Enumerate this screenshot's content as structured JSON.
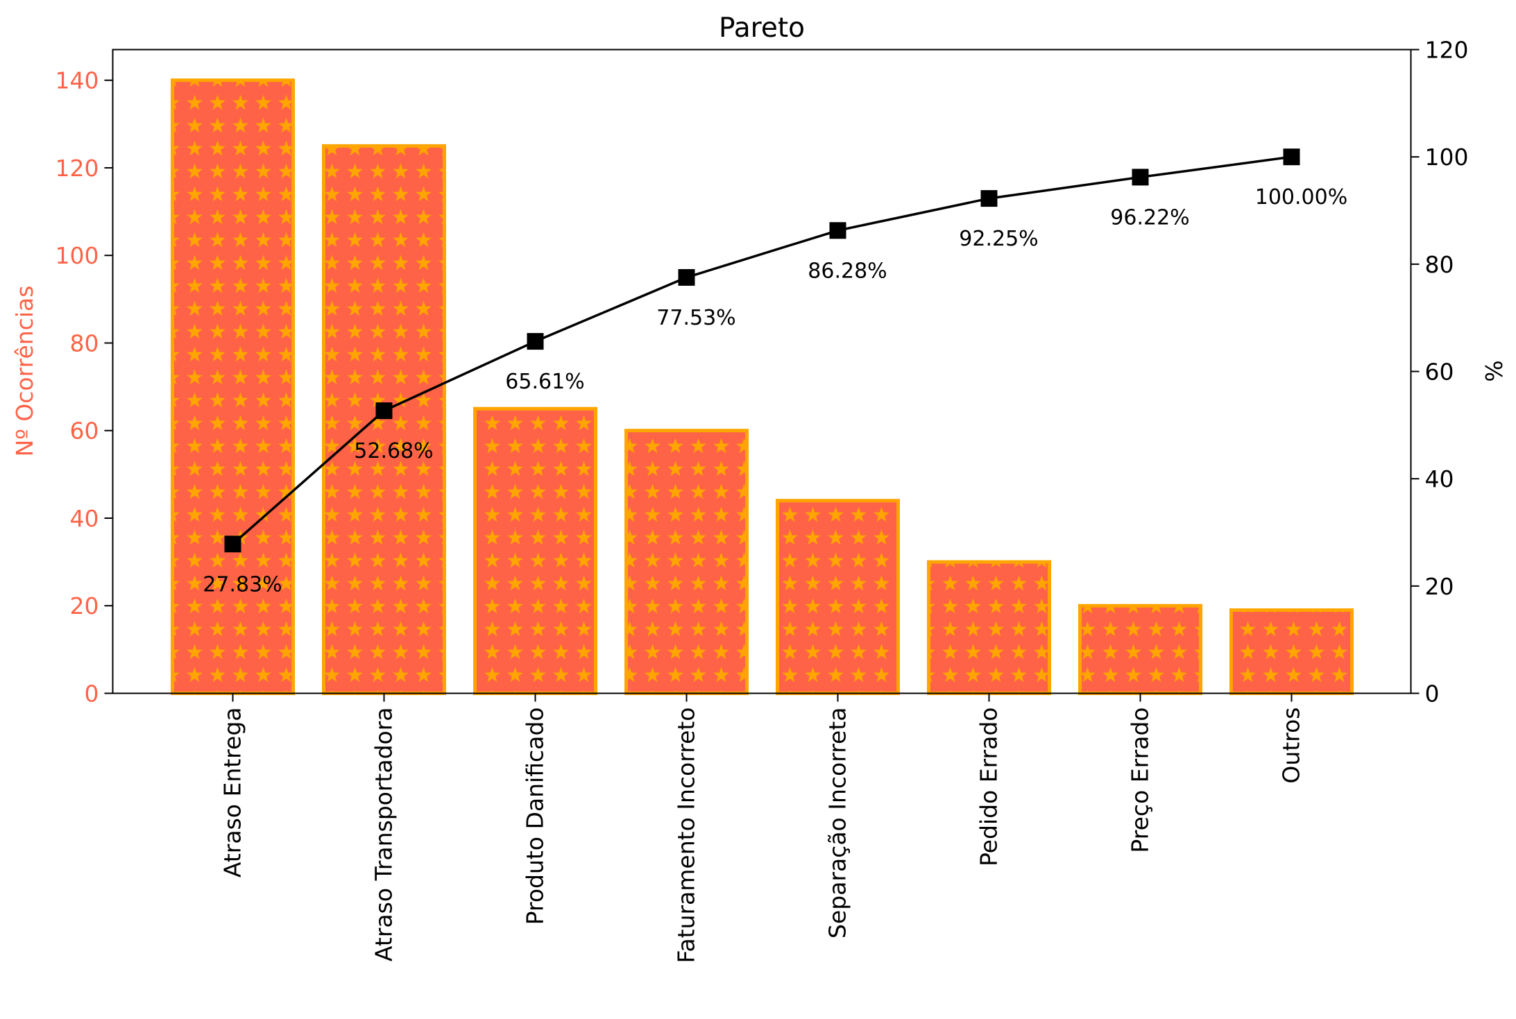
{
  "chart_data": {
    "type": "bar",
    "title": "Pareto",
    "categories": [
      "Atraso Entrega",
      "Atraso Transportadora",
      "Produto Danificado",
      "Faturamento Incorreto",
      "Separação Incorreta",
      "Pedido Errado",
      "Preço Errado",
      "Outros"
    ],
    "series": [
      {
        "type": "bar",
        "axis": "left",
        "values": [
          140,
          125,
          65,
          60,
          44,
          30,
          20,
          19
        ],
        "color": "#ff6347",
        "edge_color": "#ffa500",
        "hatch": "stars"
      },
      {
        "type": "line",
        "axis": "right",
        "values": [
          27.83,
          52.68,
          65.61,
          77.53,
          86.28,
          92.25,
          96.22,
          100.0
        ],
        "labels": [
          "27.83%",
          "52.68%",
          "65.61%",
          "77.53%",
          "86.28%",
          "92.25%",
          "96.22%",
          "100.00%"
        ],
        "color": "#000000",
        "marker": "square"
      }
    ],
    "ylabel": "Nº Ocorrências",
    "ylabel_color": "#ff6347",
    "ylim": [
      0,
      147
    ],
    "yticks": [
      0,
      20,
      40,
      60,
      80,
      100,
      120,
      140
    ],
    "y2label": "%",
    "y2lim": [
      0,
      120
    ],
    "y2ticks": [
      0,
      20,
      40,
      60,
      80,
      100,
      120
    ],
    "grid": false
  }
}
